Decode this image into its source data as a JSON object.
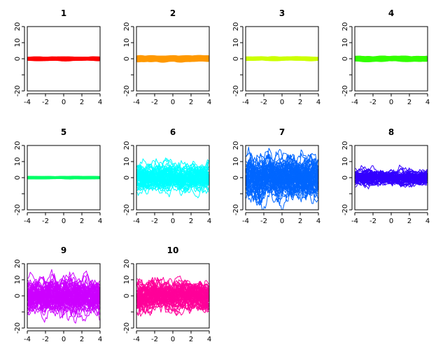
{
  "chart_data": [
    {
      "type": "line",
      "title": "1",
      "color": "#FF0000",
      "amplitude": 1.0,
      "xlim": [
        -4,
        4
      ],
      "ylim": [
        -20,
        20
      ],
      "x_ticks": [
        -4,
        -2,
        0,
        2,
        4
      ],
      "y_ticks": [
        -20,
        -10,
        0,
        10,
        20
      ],
      "y_tick_labels": [
        "-20",
        "",
        "0",
        "10",
        "20"
      ],
      "grid": false
    },
    {
      "type": "line",
      "title": "2",
      "color": "#FF9900",
      "amplitude": 2.0,
      "xlim": [
        -4,
        4
      ],
      "ylim": [
        -20,
        20
      ],
      "x_ticks": [
        -4,
        -2,
        0,
        2,
        4
      ],
      "y_ticks": [
        -20,
        -10,
        0,
        10,
        20
      ],
      "y_tick_labels": [
        "-20",
        "",
        "0",
        "10",
        "20"
      ],
      "grid": false
    },
    {
      "type": "line",
      "title": "3",
      "color": "#CCFF00",
      "amplitude": 1.0,
      "xlim": [
        -4,
        4
      ],
      "ylim": [
        -20,
        20
      ],
      "x_ticks": [
        -4,
        -2,
        0,
        2,
        4
      ],
      "y_ticks": [
        -20,
        -10,
        0,
        10,
        20
      ],
      "y_tick_labels": [
        "-20",
        "",
        "0",
        "10",
        "20"
      ],
      "grid": false
    },
    {
      "type": "line",
      "title": "4",
      "color": "#33FF00",
      "amplitude": 1.5,
      "xlim": [
        -4,
        4
      ],
      "ylim": [
        -20,
        20
      ],
      "x_ticks": [
        -4,
        -2,
        0,
        2,
        4
      ],
      "y_ticks": [
        -20,
        -10,
        0,
        10,
        20
      ],
      "y_tick_labels": [
        "-20",
        "",
        "0",
        "10",
        "20"
      ],
      "grid": false
    },
    {
      "type": "line",
      "title": "5",
      "color": "#00FF66",
      "amplitude": 0.5,
      "xlim": [
        -4,
        4
      ],
      "ylim": [
        -20,
        20
      ],
      "x_ticks": [
        -4,
        -2,
        0,
        2,
        4
      ],
      "y_ticks": [
        -20,
        -10,
        0,
        10,
        20
      ],
      "y_tick_labels": [
        "-20",
        "",
        "0",
        "10",
        "20"
      ],
      "grid": false
    },
    {
      "type": "line",
      "title": "6",
      "color": "#00FFFF",
      "amplitude": 10.0,
      "xlim": [
        -4,
        4
      ],
      "ylim": [
        -20,
        20
      ],
      "x_ticks": [
        -4,
        -2,
        0,
        2,
        4
      ],
      "y_ticks": [
        -20,
        -10,
        0,
        10,
        20
      ],
      "y_tick_labels": [
        "-20",
        "",
        "0",
        "10",
        "20"
      ],
      "grid": false
    },
    {
      "type": "line",
      "title": "7",
      "color": "#0066FF",
      "amplitude": 16.0,
      "xlim": [
        -4,
        4
      ],
      "ylim": [
        -20,
        20
      ],
      "x_ticks": [
        -4,
        -2,
        0,
        2,
        4
      ],
      "y_ticks": [
        -20,
        -10,
        0,
        10,
        20
      ],
      "y_tick_labels": [
        "-20",
        "",
        "0",
        "10",
        "20"
      ],
      "grid": false
    },
    {
      "type": "line",
      "title": "8",
      "color": "#3300FF",
      "amplitude": 6.0,
      "xlim": [
        -4,
        4
      ],
      "ylim": [
        -20,
        20
      ],
      "x_ticks": [
        -4,
        -2,
        0,
        2,
        4
      ],
      "y_ticks": [
        -20,
        -10,
        0,
        10,
        20
      ],
      "y_tick_labels": [
        "-20",
        "",
        "0",
        "10",
        "20"
      ],
      "grid": false
    },
    {
      "type": "line",
      "title": "9",
      "color": "#CC00FF",
      "amplitude": 13.0,
      "xlim": [
        -4,
        4
      ],
      "ylim": [
        -20,
        20
      ],
      "x_ticks": [
        -4,
        -2,
        0,
        2,
        4
      ],
      "y_ticks": [
        -20,
        -10,
        0,
        10,
        20
      ],
      "y_tick_labels": [
        "-20",
        "",
        "0",
        "10",
        "20"
      ],
      "grid": false
    },
    {
      "type": "line",
      "title": "10",
      "color": "#FF0099",
      "amplitude": 11.0,
      "xlim": [
        -4,
        4
      ],
      "ylim": [
        -20,
        20
      ],
      "x_ticks": [
        -4,
        -2,
        0,
        2,
        4
      ],
      "y_ticks": [
        -20,
        -10,
        0,
        10,
        20
      ],
      "y_tick_labels": [
        "-20",
        "",
        "0",
        "10",
        "20"
      ],
      "grid": false
    }
  ]
}
